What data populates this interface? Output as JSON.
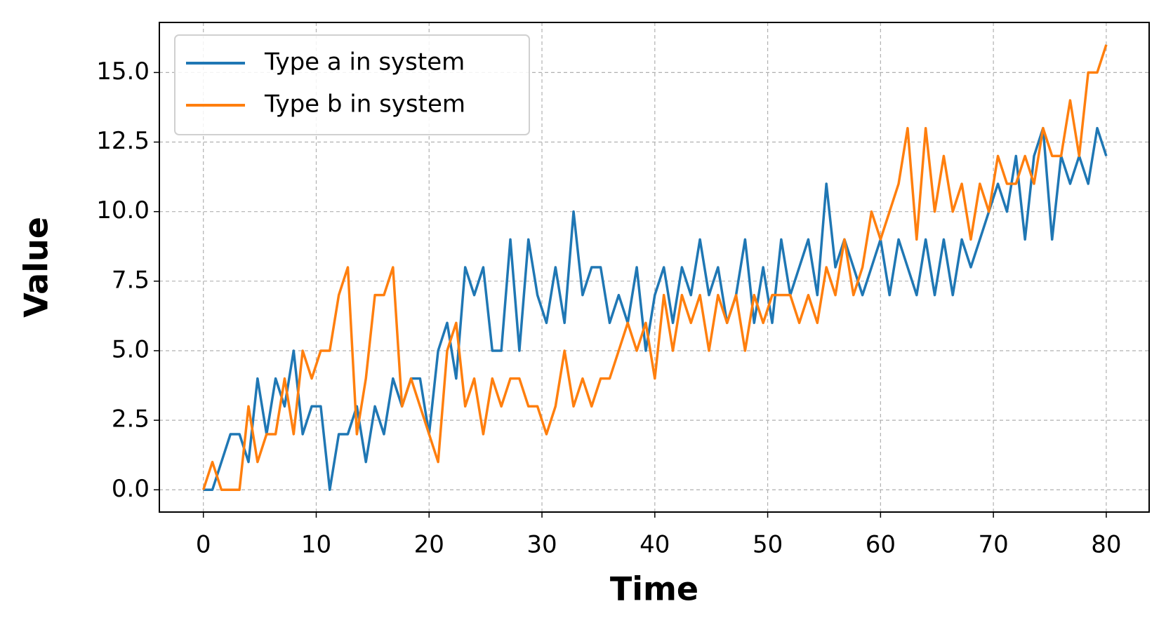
{
  "chart_data": {
    "type": "line",
    "x_label": "Time",
    "y_label": "Value",
    "x": [
      0,
      0.8,
      1.6,
      2.4,
      3.2,
      4,
      4.8,
      5.6,
      6.4,
      7.2,
      8,
      8.8,
      9.6,
      10.4,
      11.2,
      12,
      12.8,
      13.6,
      14.4,
      15.2,
      16,
      16.8,
      17.6,
      18.4,
      19.2,
      20,
      20.8,
      21.6,
      22.4,
      23.2,
      24,
      24.8,
      25.6,
      26.4,
      27.2,
      28,
      28.8,
      29.6,
      30.4,
      31.2,
      32,
      32.8,
      33.6,
      34.4,
      35.2,
      36,
      36.8,
      37.6,
      38.4,
      39.2,
      40,
      40.8,
      41.6,
      42.4,
      43.2,
      44,
      44.8,
      45.6,
      46.4,
      47.2,
      48,
      48.8,
      49.6,
      50.4,
      51.2,
      52,
      52.8,
      53.6,
      54.4,
      55.2,
      56,
      56.8,
      57.6,
      58.4,
      59.2,
      60,
      60.8,
      61.6,
      62.4,
      63.2,
      64,
      64.8,
      65.6,
      66.4,
      67.2,
      68,
      68.8,
      69.6,
      70.4,
      71.2,
      72,
      72.8,
      73.6,
      74.4,
      75.2,
      76,
      76.8,
      77.6,
      78.4,
      79.2,
      80
    ],
    "series": [
      {
        "name": "Type a in system",
        "color": "#1f77b4",
        "values": [
          0,
          0,
          1,
          2,
          2,
          1,
          4,
          2,
          4,
          3,
          5,
          2,
          3,
          3,
          0,
          2,
          2,
          3,
          1,
          3,
          2,
          4,
          3,
          4,
          4,
          2,
          5,
          6,
          4,
          8,
          7,
          8,
          5,
          5,
          9,
          5,
          9,
          7,
          6,
          8,
          6,
          10,
          7,
          8,
          8,
          6,
          7,
          6,
          8,
          5,
          7,
          8,
          6,
          8,
          7,
          9,
          7,
          8,
          6,
          7,
          9,
          6,
          8,
          6,
          9,
          7,
          8,
          9,
          7,
          11,
          8,
          9,
          8,
          7,
          8,
          9,
          7,
          9,
          8,
          7,
          9,
          7,
          9,
          7,
          9,
          8,
          9,
          10,
          11,
          10,
          12,
          9,
          12,
          13,
          9,
          12,
          11,
          12,
          11,
          13,
          12
        ]
      },
      {
        "name": "Type b in system",
        "color": "#ff7f0e",
        "values": [
          0,
          1,
          0,
          0,
          0,
          3,
          1,
          2,
          2,
          4,
          2,
          5,
          4,
          5,
          5,
          7,
          8,
          2,
          4,
          7,
          7,
          8,
          3,
          4,
          3,
          2,
          1,
          5,
          6,
          3,
          4,
          2,
          4,
          3,
          4,
          4,
          3,
          3,
          2,
          3,
          5,
          3,
          4,
          3,
          4,
          4,
          5,
          6,
          5,
          6,
          4,
          7,
          5,
          7,
          6,
          7,
          5,
          7,
          6,
          7,
          5,
          7,
          6,
          7,
          7,
          7,
          6,
          7,
          6,
          8,
          7,
          9,
          7,
          8,
          10,
          9,
          10,
          11,
          13,
          9,
          13,
          10,
          12,
          10,
          11,
          9,
          11,
          10,
          12,
          11,
          11,
          12,
          11,
          13,
          12,
          12,
          14,
          12,
          15,
          15,
          16
        ]
      }
    ],
    "xlim": [
      -3.9,
      83.8
    ],
    "ylim": [
      -0.8,
      16.8
    ],
    "xticks": [
      0,
      10,
      20,
      30,
      40,
      50,
      60,
      70,
      80
    ],
    "yticks": [
      {
        "value": 0,
        "label": "0.0"
      },
      {
        "value": 2.5,
        "label": "2.5"
      },
      {
        "value": 5,
        "label": "5.0"
      },
      {
        "value": 7.5,
        "label": "7.5"
      },
      {
        "value": 10,
        "label": "10.0"
      },
      {
        "value": 12.5,
        "label": "12.5"
      },
      {
        "value": 15,
        "label": "15.0"
      }
    ],
    "grid": true,
    "legend": "upper-left"
  }
}
